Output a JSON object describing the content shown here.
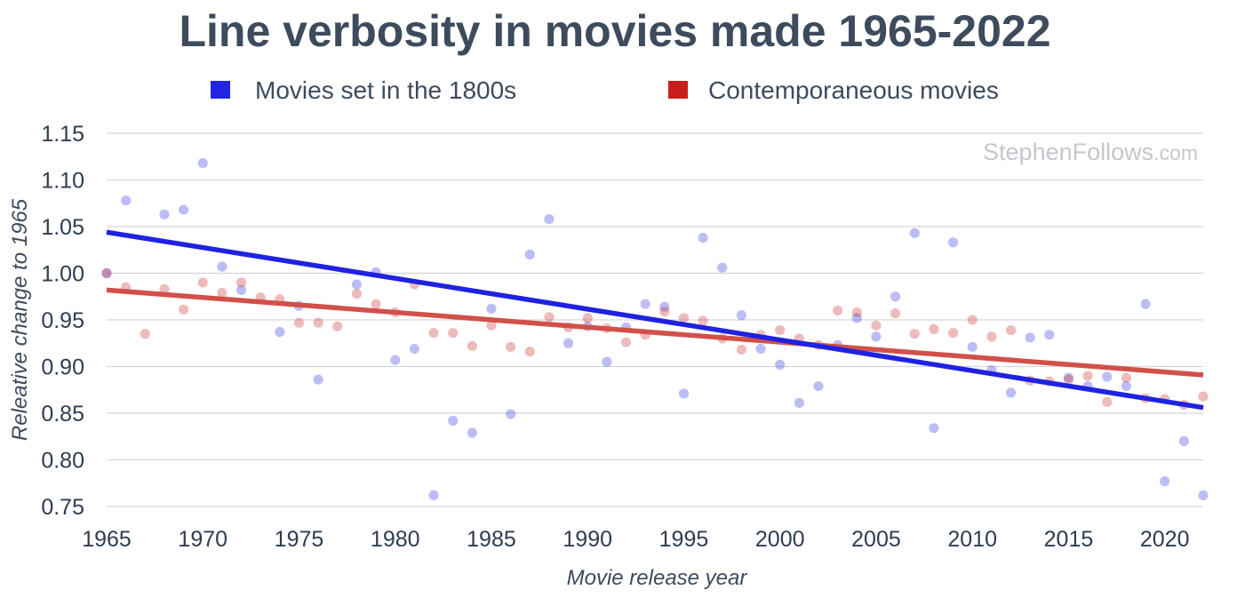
{
  "chart_data": {
    "type": "scatter",
    "title": "Line verbosity in movies made 1965-2022",
    "xlabel": "Movie release year",
    "ylabel": "Releative change to 1965",
    "watermark": {
      "main": "StephenFollows",
      "suffix": ".com"
    },
    "xlim": [
      1965,
      2022
    ],
    "ylim": [
      0.75,
      1.15
    ],
    "x_ticks": [
      1965,
      1970,
      1975,
      1980,
      1985,
      1990,
      1995,
      2000,
      2005,
      2010,
      2015,
      2020
    ],
    "y_ticks": [
      "0.75",
      "0.80",
      "0.85",
      "0.90",
      "0.95",
      "1.00",
      "1.05",
      "1.10",
      "1.15"
    ],
    "grid": true,
    "legend_position": "top",
    "series": [
      {
        "name": "Movies set in the 1800s",
        "color": "#2326e0",
        "trend": {
          "start": [
            1965,
            1.044
          ],
          "end": [
            2022,
            0.856
          ]
        },
        "points": [
          [
            1965,
            1.0
          ],
          [
            1966,
            1.078
          ],
          [
            1968,
            1.063
          ],
          [
            1969,
            1.068
          ],
          [
            1970,
            1.118
          ],
          [
            1971,
            1.007
          ],
          [
            1972,
            0.982
          ],
          [
            1974,
            0.937
          ],
          [
            1975,
            0.965
          ],
          [
            1976,
            0.886
          ],
          [
            1978,
            0.988
          ],
          [
            1979,
            1.001
          ],
          [
            1980,
            0.907
          ],
          [
            1981,
            0.919
          ],
          [
            1982,
            0.762
          ],
          [
            1983,
            0.842
          ],
          [
            1984,
            0.829
          ],
          [
            1985,
            0.962
          ],
          [
            1986,
            0.849
          ],
          [
            1987,
            1.02
          ],
          [
            1988,
            1.058
          ],
          [
            1989,
            0.925
          ],
          [
            1990,
            0.943
          ],
          [
            1991,
            0.905
          ],
          [
            1992,
            0.942
          ],
          [
            1993,
            0.967
          ],
          [
            1994,
            0.964
          ],
          [
            1995,
            0.871
          ],
          [
            1996,
            1.038
          ],
          [
            1997,
            1.006
          ],
          [
            1998,
            0.955
          ],
          [
            1999,
            0.919
          ],
          [
            2000,
            0.902
          ],
          [
            2001,
            0.861
          ],
          [
            2002,
            0.879
          ],
          [
            2003,
            0.923
          ],
          [
            2004,
            0.952
          ],
          [
            2005,
            0.932
          ],
          [
            2006,
            0.975
          ],
          [
            2007,
            1.043
          ],
          [
            2008,
            0.834
          ],
          [
            2009,
            1.033
          ],
          [
            2010,
            0.921
          ],
          [
            2011,
            0.896
          ],
          [
            2012,
            0.872
          ],
          [
            2013,
            0.931
          ],
          [
            2014,
            0.934
          ],
          [
            2015,
            0.888
          ],
          [
            2016,
            0.879
          ],
          [
            2017,
            0.889
          ],
          [
            2018,
            0.879
          ],
          [
            2019,
            0.967
          ],
          [
            2020,
            0.777
          ],
          [
            2021,
            0.82
          ],
          [
            2022,
            0.762
          ]
        ]
      },
      {
        "name": "Contemporaneous movies",
        "color": "#c81e1e",
        "trend": {
          "start": [
            1965,
            0.982
          ],
          "end": [
            2022,
            0.891
          ]
        },
        "points": [
          [
            1965,
            1.0
          ],
          [
            1966,
            0.985
          ],
          [
            1967,
            0.935
          ],
          [
            1968,
            0.983
          ],
          [
            1969,
            0.961
          ],
          [
            1970,
            0.99
          ],
          [
            1971,
            0.979
          ],
          [
            1972,
            0.99
          ],
          [
            1973,
            0.974
          ],
          [
            1974,
            0.972
          ],
          [
            1975,
            0.947
          ],
          [
            1976,
            0.947
          ],
          [
            1977,
            0.943
          ],
          [
            1978,
            0.978
          ],
          [
            1979,
            0.967
          ],
          [
            1980,
            0.958
          ],
          [
            1981,
            0.988
          ],
          [
            1982,
            0.936
          ],
          [
            1983,
            0.936
          ],
          [
            1984,
            0.922
          ],
          [
            1985,
            0.944
          ],
          [
            1986,
            0.921
          ],
          [
            1987,
            0.916
          ],
          [
            1988,
            0.953
          ],
          [
            1989,
            0.942
          ],
          [
            1990,
            0.952
          ],
          [
            1991,
            0.941
          ],
          [
            1992,
            0.926
          ],
          [
            1993,
            0.934
          ],
          [
            1994,
            0.959
          ],
          [
            1995,
            0.952
          ],
          [
            1996,
            0.949
          ],
          [
            1997,
            0.93
          ],
          [
            1998,
            0.918
          ],
          [
            1999,
            0.934
          ],
          [
            2000,
            0.939
          ],
          [
            2001,
            0.93
          ],
          [
            2002,
            0.923
          ],
          [
            2003,
            0.96
          ],
          [
            2004,
            0.958
          ],
          [
            2005,
            0.944
          ],
          [
            2006,
            0.957
          ],
          [
            2007,
            0.935
          ],
          [
            2008,
            0.94
          ],
          [
            2009,
            0.936
          ],
          [
            2010,
            0.95
          ],
          [
            2011,
            0.932
          ],
          [
            2012,
            0.939
          ],
          [
            2013,
            0.885
          ],
          [
            2014,
            0.884
          ],
          [
            2015,
            0.886
          ],
          [
            2016,
            0.89
          ],
          [
            2017,
            0.862
          ],
          [
            2018,
            0.888
          ],
          [
            2019,
            0.866
          ],
          [
            2020,
            0.865
          ],
          [
            2021,
            0.859
          ],
          [
            2022,
            0.868
          ]
        ]
      }
    ]
  }
}
